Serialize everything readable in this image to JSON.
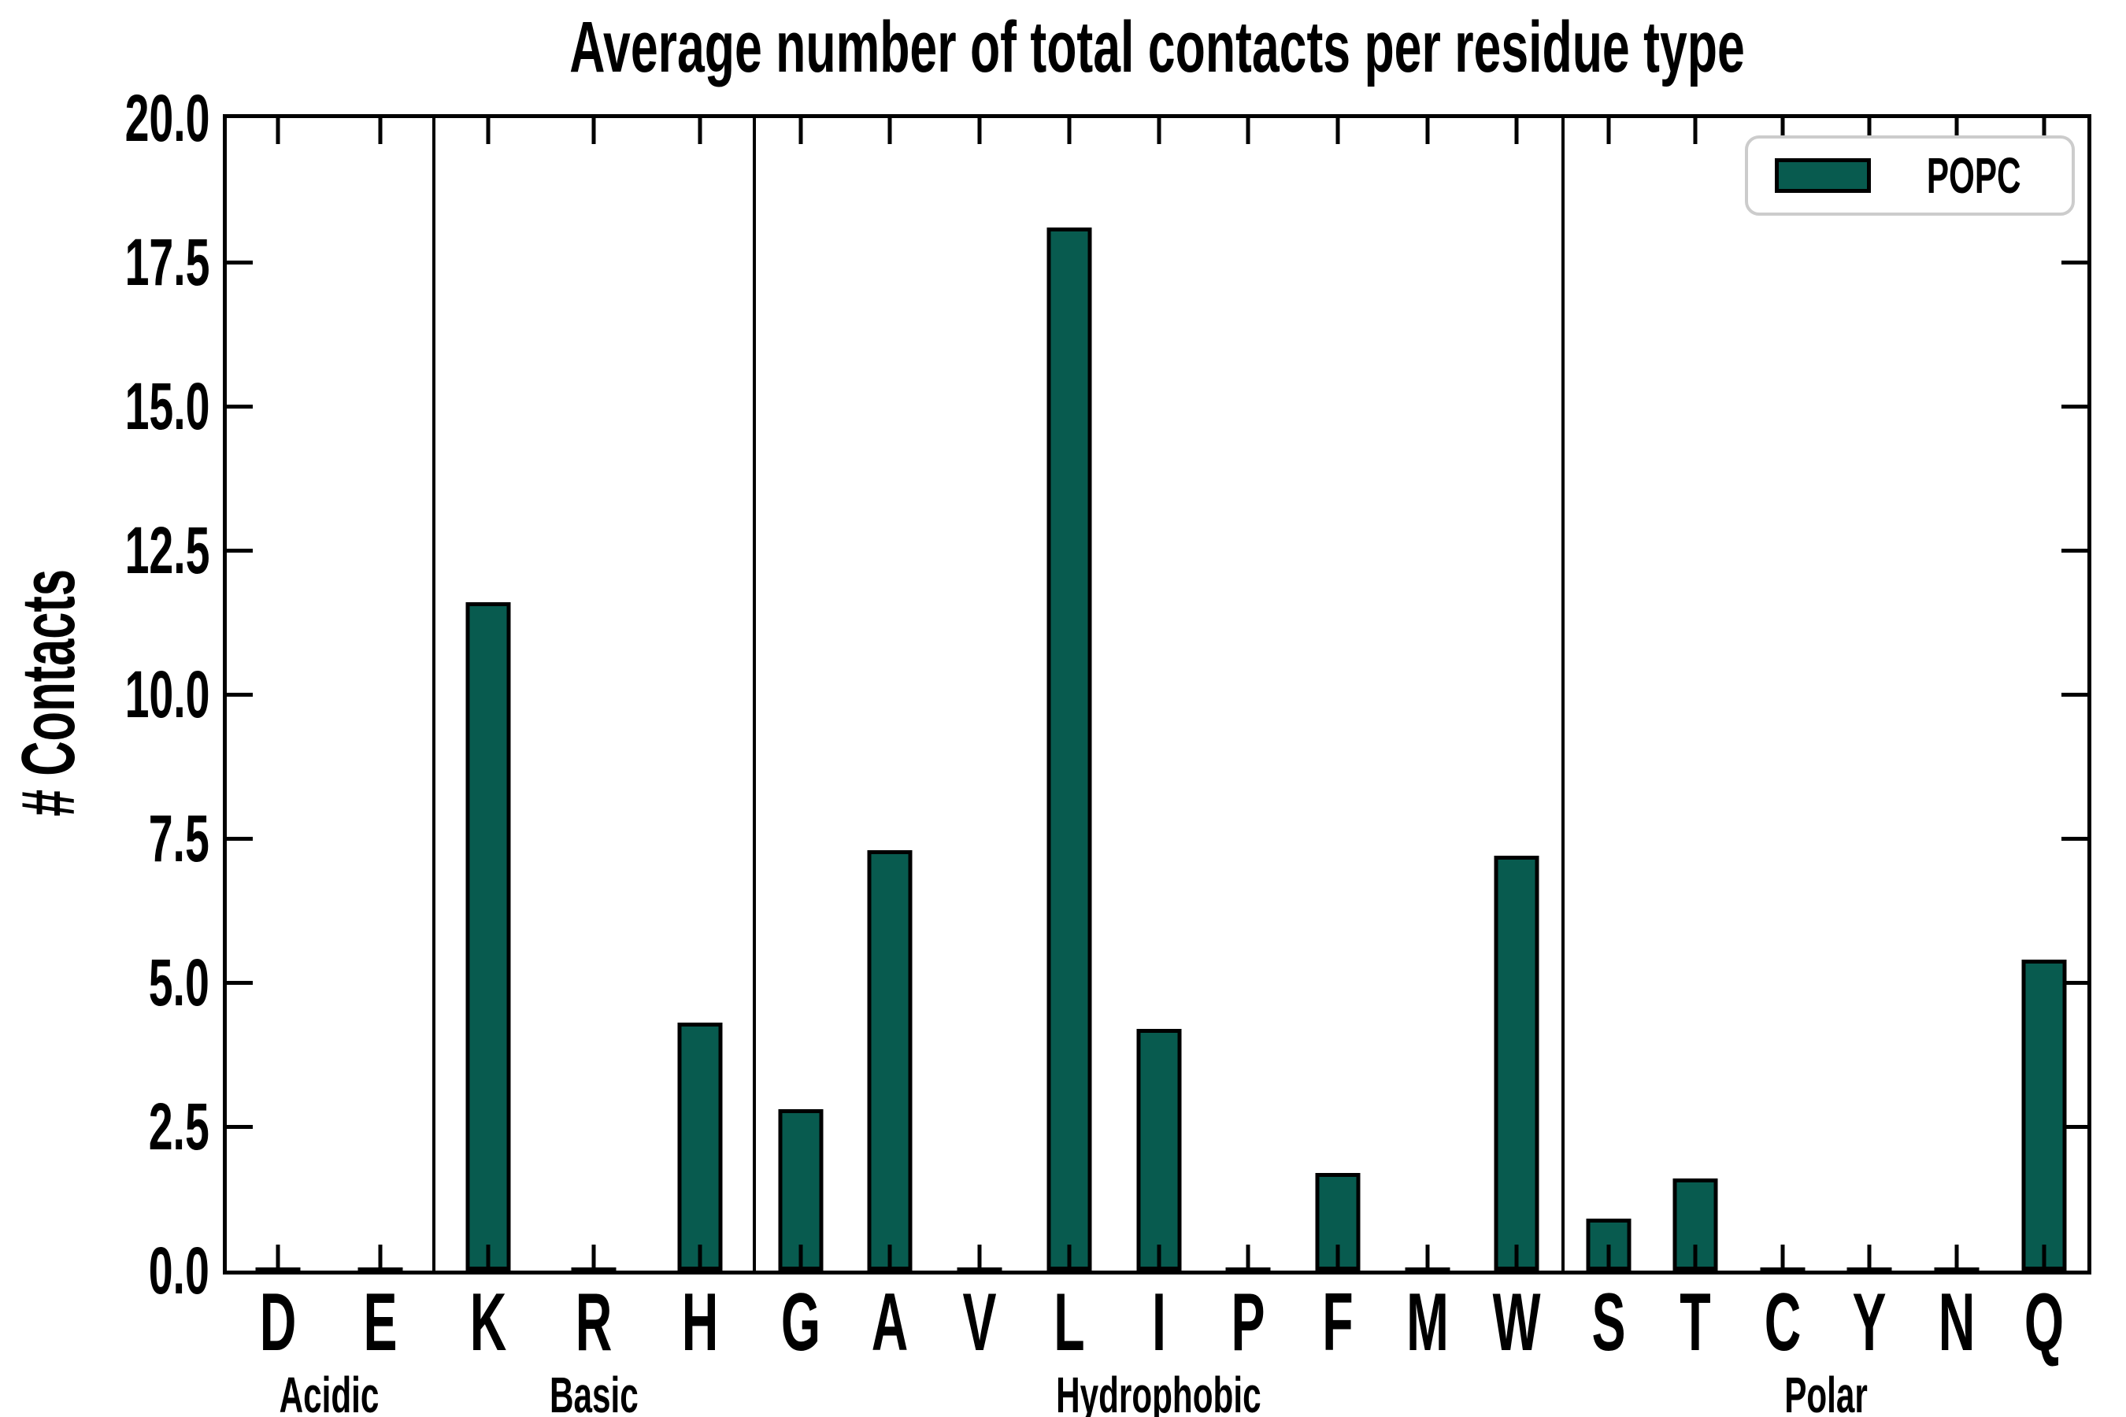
{
  "title": "Average number of total contacts per residue type",
  "y_axis": {
    "label": "# Contacts",
    "tick_labels": [
      "20.0",
      "17.5",
      "15.0",
      "12.5",
      "10.0",
      "7.5",
      "5.0",
      "2.5",
      "0.0"
    ],
    "min": 0,
    "max": 20
  },
  "legend": {
    "label": "POPC"
  },
  "colors": {
    "bar_fill": "#085b4f",
    "bar_edge": "#000000",
    "axis": "#000000",
    "legend_border": "#cccccc",
    "background": "#ffffff"
  },
  "chart_data": {
    "type": "bar",
    "title": "Average number of total contacts per residue type",
    "xlabel": "",
    "ylabel": "# Contacts",
    "ylim": [
      0,
      20
    ],
    "ytick_step": 2.5,
    "grid": false,
    "legend_position": "upper right",
    "series_name": "POPC",
    "groups": [
      {
        "label": "Acidic",
        "categories": [
          "D",
          "E"
        ],
        "values": [
          0.05,
          0.05
        ]
      },
      {
        "label": "Basic",
        "categories": [
          "K",
          "R",
          "H"
        ],
        "values": [
          11.6,
          0.05,
          4.3
        ]
      },
      {
        "label": "Hydrophobic",
        "categories": [
          "G",
          "A",
          "V",
          "L",
          "I",
          "P",
          "F",
          "M",
          "W"
        ],
        "values": [
          2.8,
          7.3,
          0.05,
          18.1,
          4.2,
          0.05,
          1.7,
          0.05,
          7.2
        ]
      },
      {
        "label": "Polar",
        "categories": [
          "S",
          "T",
          "C",
          "Y",
          "N",
          "Q"
        ],
        "values": [
          0.9,
          1.6,
          0.05,
          0.05,
          0.05,
          5.4
        ]
      }
    ]
  }
}
